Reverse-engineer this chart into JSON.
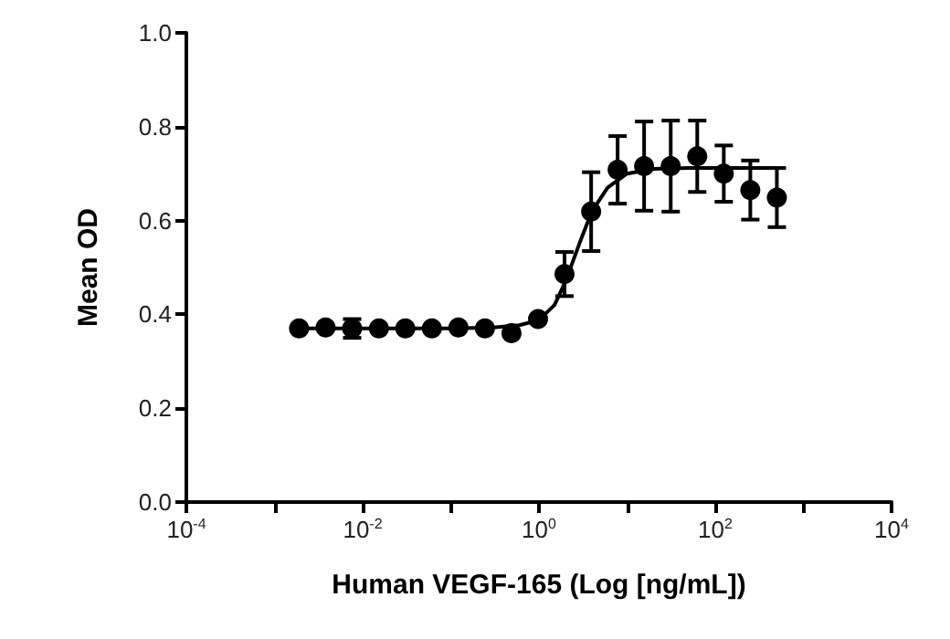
{
  "chart_data": {
    "type": "scatter",
    "xlabel": "Human VEGF-165 (Log [ng/mL])",
    "ylabel": "Mean OD",
    "log": "x",
    "xlim": [
      0.0001,
      10000
    ],
    "ylim": [
      0,
      1.0
    ],
    "xticks": [
      {
        "value": 0.0001,
        "label": "10$^{-4}$"
      },
      {
        "value": 0.001,
        "label": null
      },
      {
        "value": 0.01,
        "label": "10$^{-2}$"
      },
      {
        "value": 0.1,
        "label": null
      },
      {
        "value": 1,
        "label": "10$^{0}$"
      },
      {
        "value": 10,
        "label": null
      },
      {
        "value": 100,
        "label": "10$^{2}$"
      },
      {
        "value": 1000,
        "label": null
      },
      {
        "value": 10000,
        "label": "10$^{4}$"
      }
    ],
    "yticks": [
      {
        "value": 0,
        "label": "0.0"
      },
      {
        "value": 0.2,
        "label": "0.2"
      },
      {
        "value": 0.4,
        "label": "0.4"
      },
      {
        "value": 0.6,
        "label": "0.6"
      },
      {
        "value": 0.8,
        "label": "0.8"
      },
      {
        "value": 1.0,
        "label": "1.0"
      }
    ],
    "marker": "circle",
    "series": [
      {
        "color": "#000000",
        "x": [
          0.0019,
          0.0038,
          0.0076,
          0.0153,
          0.0305,
          0.061,
          0.122,
          0.244,
          0.488,
          0.977,
          1.95,
          3.91,
          7.81,
          15.6,
          31.25,
          62.5,
          125,
          250,
          500
        ],
        "values": [
          0.37,
          0.372,
          0.37,
          0.37,
          0.37,
          0.37,
          0.372,
          0.37,
          0.36,
          0.39,
          0.486,
          0.619,
          0.708,
          0.716,
          0.716,
          0.737,
          0.7,
          0.665,
          0.649
        ],
        "errors": [
          null,
          null,
          0.02,
          null,
          null,
          null,
          null,
          null,
          null,
          null,
          0.047,
          0.084,
          0.072,
          0.095,
          0.097,
          0.076,
          0.06,
          0.063,
          0.063
        ]
      },
      {
        "type": "line",
        "color": "#000000",
        "marker": "none",
        "line_style": "solid",
        "x": [
          0.0019,
          0.01,
          0.1,
          0.3,
          0.6,
          1,
          1.5,
          2,
          3,
          4,
          6,
          10,
          20,
          50,
          500
        ],
        "values": [
          0.37,
          0.37,
          0.37,
          0.372,
          0.377,
          0.388,
          0.42,
          0.47,
          0.56,
          0.62,
          0.67,
          0.7,
          0.71,
          0.712,
          0.712
        ]
      }
    ]
  }
}
